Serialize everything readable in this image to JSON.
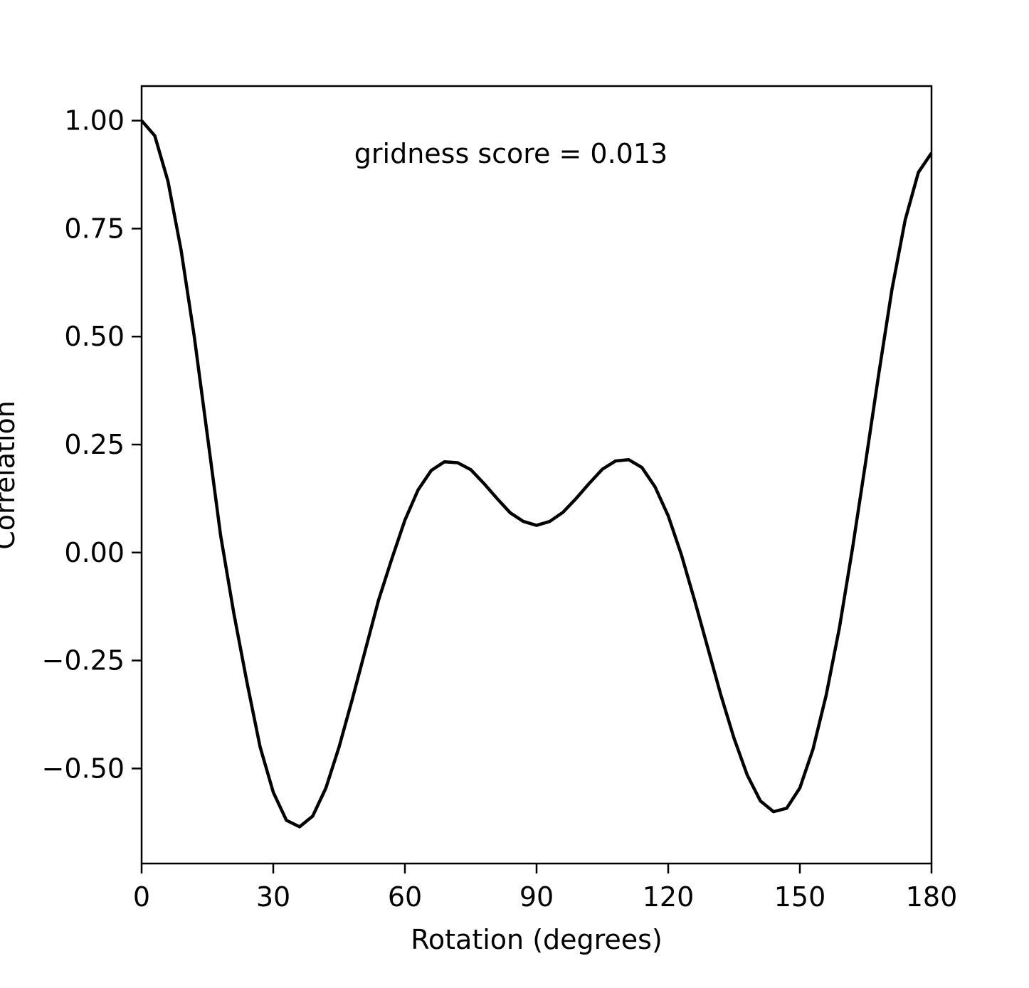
{
  "chart_data": {
    "type": "line",
    "title": "",
    "xlabel": "Rotation (degrees)",
    "ylabel": "Correlation",
    "xlim": [
      0,
      180
    ],
    "ylim": [
      -0.72,
      1.08
    ],
    "xticks": [
      0,
      30,
      60,
      90,
      120,
      150,
      180
    ],
    "xtick_labels": [
      "0",
      "30",
      "60",
      "90",
      "120",
      "150",
      "180"
    ],
    "yticks": [
      1.0,
      0.75,
      0.5,
      0.25,
      0.0,
      -0.25,
      -0.5
    ],
    "ytick_labels": [
      "1.00",
      "0.75",
      "0.50",
      "0.25",
      "0.00",
      "−0.25",
      "−0.50"
    ],
    "grid": false,
    "line_color": "#000000",
    "annotation": "gridness score = 0.013",
    "series": [
      {
        "x": [
          0,
          3,
          6,
          9,
          12,
          15,
          18,
          21,
          24,
          27,
          30,
          33,
          36,
          39,
          42,
          45,
          48,
          51,
          54,
          57,
          60,
          63,
          66,
          69,
          72,
          75,
          78,
          81,
          84,
          87,
          90,
          93,
          96,
          99,
          102,
          105,
          108,
          111,
          114,
          117,
          120,
          123,
          126,
          129,
          132,
          135,
          138,
          141,
          144,
          147,
          150,
          153,
          156,
          159,
          162,
          165,
          168,
          171,
          174,
          177,
          180
        ],
        "y": [
          1.0,
          0.965,
          0.86,
          0.7,
          0.5,
          0.27,
          0.04,
          -0.14,
          -0.3,
          -0.45,
          -0.555,
          -0.62,
          -0.635,
          -0.61,
          -0.545,
          -0.45,
          -0.34,
          -0.225,
          -0.11,
          -0.015,
          0.075,
          0.145,
          0.19,
          0.21,
          0.208,
          0.192,
          0.16,
          0.125,
          0.092,
          0.072,
          0.063,
          0.072,
          0.093,
          0.125,
          0.16,
          0.193,
          0.212,
          0.215,
          0.197,
          0.152,
          0.085,
          -0.005,
          -0.11,
          -0.22,
          -0.33,
          -0.43,
          -0.515,
          -0.575,
          -0.6,
          -0.592,
          -0.545,
          -0.455,
          -0.33,
          -0.175,
          0.01,
          0.21,
          0.415,
          0.61,
          0.77,
          0.88,
          0.925
        ]
      }
    ]
  }
}
